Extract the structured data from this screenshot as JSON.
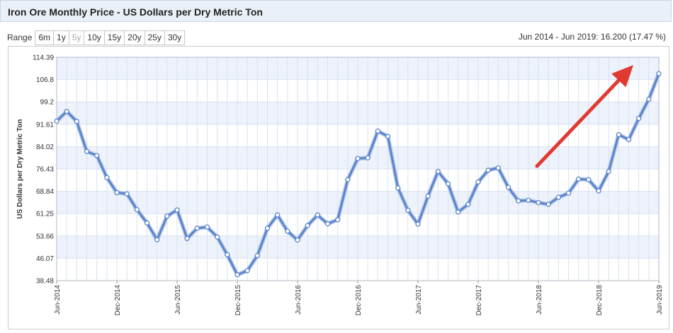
{
  "header": {
    "title": "Iron Ore Monthly Price - US Dollars per Dry Metric Ton"
  },
  "range": {
    "label": "Range",
    "buttons": [
      {
        "label": "6m",
        "enabled": true
      },
      {
        "label": "1y",
        "enabled": true
      },
      {
        "label": "5y",
        "enabled": false
      },
      {
        "label": "10y",
        "enabled": true
      },
      {
        "label": "15y",
        "enabled": true
      },
      {
        "label": "20y",
        "enabled": true
      },
      {
        "label": "25y",
        "enabled": true
      },
      {
        "label": "30y",
        "enabled": true
      }
    ]
  },
  "summary": "Jun 2014 - Jun 2019: 16.200 (17.47 %)",
  "colors": {
    "line": "#5b84cc",
    "line_glow": "#b9cbea",
    "band": "#edf2fb",
    "grid": "#d8e2f2",
    "arrow": "#e03a31"
  },
  "chart_data": {
    "type": "line",
    "title": "",
    "xlabel": "",
    "ylabel": "US Dollars per Dry Metric Ton",
    "ylim": [
      38.48,
      114.39
    ],
    "y_ticks": [
      "38.48",
      "46.07",
      "53.66",
      "61.25",
      "68.84",
      "76.43",
      "84.02",
      "91.61",
      "99.2",
      "106.8",
      "114.39"
    ],
    "x_ticks": [
      {
        "label": "Jun-2014",
        "index": 0
      },
      {
        "label": "Dec-2014",
        "index": 6
      },
      {
        "label": "Jun-2015",
        "index": 12
      },
      {
        "label": "Dec-2015",
        "index": 18
      },
      {
        "label": "Jun-2016",
        "index": 24
      },
      {
        "label": "Dec-2016",
        "index": 30
      },
      {
        "label": "Jun-2017",
        "index": 36
      },
      {
        "label": "Dec-2017",
        "index": 42
      },
      {
        "label": "Jun-2018",
        "index": 48
      },
      {
        "label": "Dec-2018",
        "index": 54
      },
      {
        "label": "Jun-2019",
        "index": 60
      }
    ],
    "grid": true,
    "legend": "none",
    "annotation": "red arrow pointing up-right",
    "series": [
      {
        "values": [
          92.7,
          96.0,
          92.6,
          82.4,
          81.0,
          73.5,
          68.4,
          68.0,
          62.6,
          58.1,
          52.4,
          60.4,
          62.5,
          52.8,
          56.3,
          56.7,
          53.3,
          47.3,
          40.5,
          41.9,
          47.0,
          56.3,
          60.8,
          55.3,
          52.3,
          57.2,
          60.8,
          57.8,
          59.2,
          72.8,
          80.0,
          80.2,
          89.3,
          87.5,
          70.0,
          62.4,
          57.7,
          67.2,
          75.6,
          71.4,
          61.8,
          64.4,
          72.0,
          76.0,
          76.8,
          70.2,
          65.6,
          65.8,
          65.0,
          64.4,
          66.8,
          68.2,
          73.0,
          72.8,
          69.0,
          75.6,
          88.1,
          86.4,
          93.6,
          100.1,
          108.8
        ]
      }
    ]
  }
}
